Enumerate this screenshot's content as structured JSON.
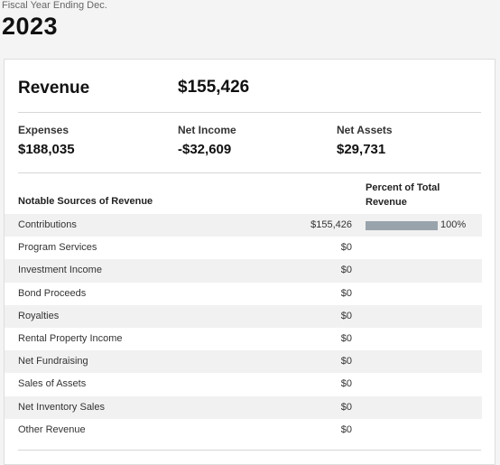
{
  "header": {
    "fiscal_label": "Fiscal Year Ending Dec.",
    "year": "2023"
  },
  "summary": {
    "revenue_label": "Revenue",
    "revenue_value": "$155,426",
    "expenses_label": "Expenses",
    "expenses_value": "$188,035",
    "net_income_label": "Net Income",
    "net_income_value": "-$32,609",
    "net_assets_label": "Net Assets",
    "net_assets_value": "$29,731"
  },
  "sources": {
    "heading": "Notable Sources of Revenue",
    "percent_heading": "Percent of Total Revenue",
    "bar_color": "#99a3ab",
    "rows": [
      {
        "name": "Contributions",
        "value": "$155,426",
        "percent": 100,
        "percent_label": "100%"
      },
      {
        "name": "Program Services",
        "value": "$0"
      },
      {
        "name": "Investment Income",
        "value": "$0"
      },
      {
        "name": "Bond Proceeds",
        "value": "$0"
      },
      {
        "name": "Royalties",
        "value": "$0"
      },
      {
        "name": "Rental Property Income",
        "value": "$0"
      },
      {
        "name": "Net Fundraising",
        "value": "$0"
      },
      {
        "name": "Sales of Assets",
        "value": "$0"
      },
      {
        "name": "Net Inventory Sales",
        "value": "$0"
      },
      {
        "name": "Other Revenue",
        "value": "$0"
      }
    ]
  }
}
